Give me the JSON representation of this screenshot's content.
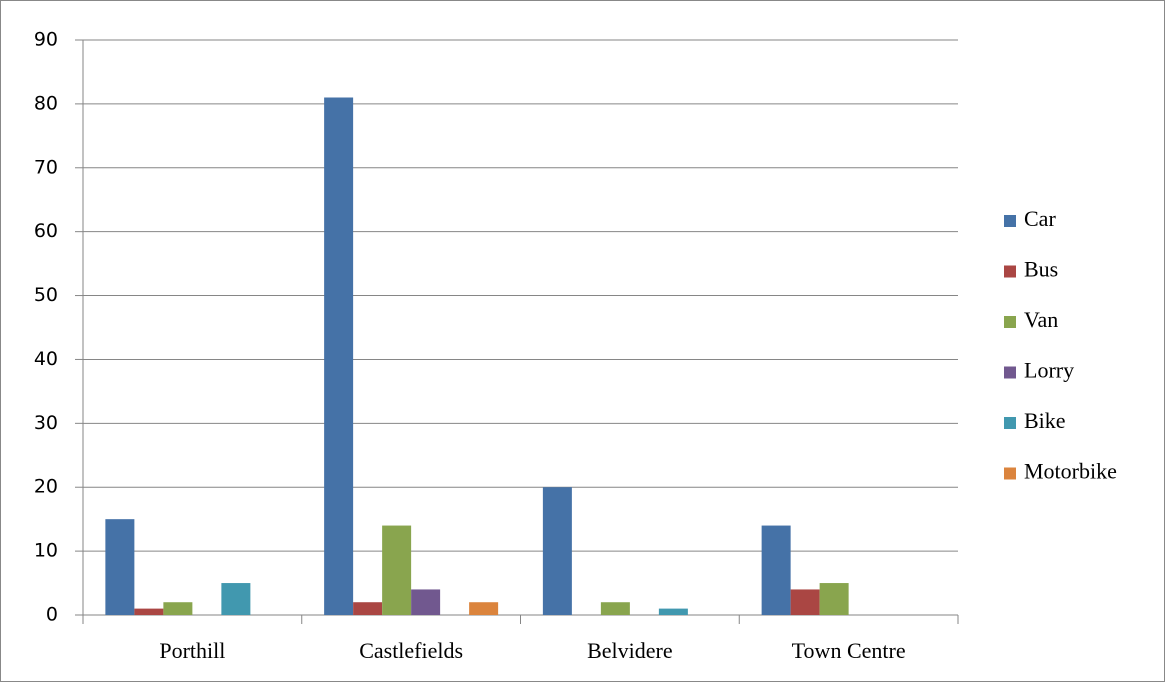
{
  "chart_data": {
    "type": "bar",
    "categories": [
      "Porthill",
      "Castlefields",
      "Belvidere",
      "Town Centre"
    ],
    "series": [
      {
        "name": "Car",
        "color": "#4572a7",
        "values": [
          15,
          81,
          20,
          14
        ]
      },
      {
        "name": "Bus",
        "color": "#aa4643",
        "values": [
          1,
          2,
          0,
          4
        ]
      },
      {
        "name": "Van",
        "color": "#89a54e",
        "values": [
          2,
          14,
          2,
          5
        ]
      },
      {
        "name": "Lorry",
        "color": "#71588f",
        "values": [
          0,
          4,
          0,
          0
        ]
      },
      {
        "name": "Bike",
        "color": "#4198af",
        "values": [
          5,
          0,
          1,
          0
        ]
      },
      {
        "name": "Motorbike",
        "color": "#db843d",
        "values": [
          0,
          2,
          0,
          0
        ]
      }
    ],
    "ylim": [
      0,
      90
    ],
    "yticks": [
      0,
      10,
      20,
      30,
      40,
      50,
      60,
      70,
      80,
      90
    ],
    "grid": true,
    "legend": "right"
  }
}
